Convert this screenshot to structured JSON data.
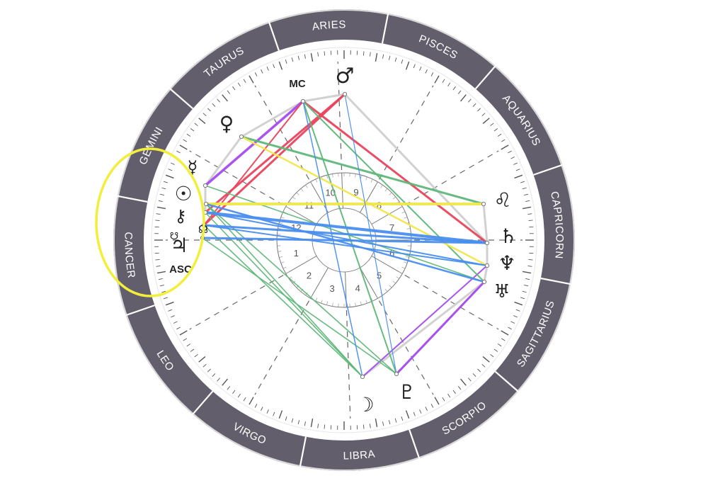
{
  "chart_data": {
    "type": "natal-chart-wheel",
    "signs": [
      "ARIES",
      "PISCES",
      "AQUARIUS",
      "CAPRICORN",
      "SAGITTARIUS",
      "SCORPIO",
      "LIBRA",
      "VIRGO",
      "LEO",
      "CANCER",
      "GEMINI",
      "TAURUS"
    ],
    "houses": [
      "1",
      "2",
      "3",
      "4",
      "5",
      "6",
      "7",
      "8",
      "9",
      "10",
      "11",
      "12"
    ],
    "angles": {
      "mc": "MC",
      "asc": "ASC"
    },
    "planets": [
      {
        "id": "mars",
        "glyph": "♂"
      },
      {
        "id": "venus",
        "glyph": "♀"
      },
      {
        "id": "mercury",
        "glyph": "☿"
      },
      {
        "id": "sun",
        "glyph": "☉"
      },
      {
        "id": "chiron",
        "glyph": "⚷"
      },
      {
        "id": "north-node",
        "glyph": "☊"
      },
      {
        "id": "jupiter",
        "glyph": "♃"
      },
      {
        "id": "south-node",
        "glyph": "☋"
      },
      {
        "id": "saturn",
        "glyph": "♄"
      },
      {
        "id": "neptune",
        "glyph": "♆"
      },
      {
        "id": "uranus",
        "glyph": "♅"
      },
      {
        "id": "moon",
        "glyph": "☽"
      },
      {
        "id": "pluto",
        "glyph": "♇"
      }
    ],
    "aspect_colors": {
      "gray": "#cfcfcf",
      "purple": "#a64bf0",
      "red": "#e8455c",
      "green": "#5fb87a",
      "yellow": "#f2e64b",
      "blue": "#4a8ff0"
    },
    "highlight": {
      "target": "CANCER",
      "color": "#f2ee3c"
    }
  }
}
